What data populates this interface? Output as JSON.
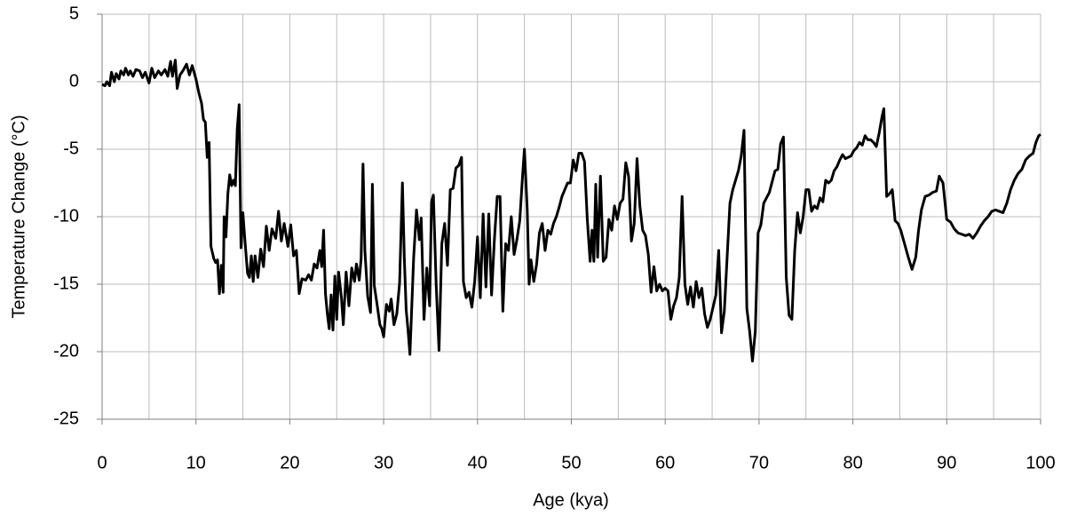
{
  "chart_data": {
    "type": "line",
    "xlabel": "Age (kya)",
    "ylabel": "Temperature Change (°C)",
    "xlim": [
      0,
      100
    ],
    "xticks": [
      0,
      10,
      20,
      30,
      40,
      50,
      60,
      70,
      80,
      90,
      100
    ],
    "x_minor_grid": [
      5,
      15,
      25,
      35,
      45,
      55,
      65,
      75,
      85,
      95
    ],
    "ylim": [
      -25,
      5
    ],
    "yticks": [
      5,
      0,
      -5,
      -10,
      -15,
      -20,
      -25
    ],
    "grid": true,
    "series": [
      {
        "color": "#000000",
        "x": [
          0,
          0.3,
          0.5,
          0.8,
          1,
          1.3,
          1.5,
          1.8,
          2,
          2.3,
          2.5,
          2.8,
          3,
          3.3,
          3.6,
          4,
          4.3,
          4.6,
          5,
          5.3,
          5.6,
          6,
          6.3,
          6.7,
          7,
          7.3,
          7.5,
          7.8,
          8,
          8.3,
          8.6,
          9,
          9.3,
          9.6,
          10,
          10.3,
          10.6,
          10.8,
          11,
          11.2,
          11.4,
          11.6,
          11.9,
          12.1,
          12.3,
          12.5,
          12.7,
          12.9,
          13,
          13.2,
          13.4,
          13.6,
          13.8,
          14,
          14.2,
          14.4,
          14.6,
          14.8,
          15,
          15.2,
          15.5,
          15.7,
          15.9,
          16.1,
          16.3,
          16.6,
          16.9,
          17.2,
          17.5,
          17.8,
          18.1,
          18.5,
          18.8,
          19.1,
          19.4,
          19.8,
          20.1,
          20.4,
          20.7,
          21,
          21.3,
          21.7,
          22,
          22.3,
          22.6,
          22.9,
          23.2,
          23.4,
          23.6,
          23.8,
          24,
          24.2,
          24.4,
          24.6,
          24.8,
          25,
          25.2,
          25.5,
          25.7,
          26,
          26.3,
          26.6,
          26.9,
          27.1,
          27.4,
          27.6,
          27.8,
          28,
          28.3,
          28.6,
          28.8,
          29,
          29.3,
          29.6,
          29.8,
          30,
          30.3,
          30.6,
          30.8,
          31.1,
          31.4,
          31.7,
          32,
          32.2,
          32.4,
          32.6,
          32.8,
          33.2,
          33.5,
          33.8,
          34,
          34.3,
          34.6,
          34.9,
          35.1,
          35.3,
          35.6,
          35.9,
          36.2,
          36.5,
          36.8,
          37.1,
          37.4,
          37.7,
          38,
          38.3,
          38.5,
          38.8,
          39.1,
          39.4,
          39.7,
          40,
          40.3,
          40.6,
          40.9,
          41.2,
          41.5,
          41.8,
          42.1,
          42.4,
          42.7,
          43,
          43.3,
          43.6,
          43.9,
          44.2,
          44.5,
          44.8,
          45,
          45.3,
          45.5,
          45.7,
          46,
          46.3,
          46.6,
          46.9,
          47.2,
          47.5,
          47.8,
          48.1,
          48.4,
          48.7,
          49,
          49.3,
          49.6,
          49.9,
          50.2,
          50.5,
          50.8,
          51.1,
          51.4,
          51.7,
          52,
          52.2,
          52.4,
          52.6,
          52.8,
          53.1,
          53.4,
          53.7,
          54,
          54.3,
          54.6,
          54.9,
          55.2,
          55.5,
          55.8,
          56.1,
          56.4,
          56.7,
          57,
          57.3,
          57.6,
          57.9,
          58.2,
          58.5,
          58.8,
          59.1,
          59.4,
          59.7,
          60,
          60.3,
          60.6,
          60.9,
          61.2,
          61.5,
          61.8,
          62.1,
          62.4,
          62.7,
          63,
          63.3,
          63.6,
          63.9,
          64.2,
          64.5,
          64.8,
          65.1,
          65.4,
          65.7,
          66,
          66.3,
          66.6,
          66.9,
          67.2,
          67.5,
          67.8,
          68.1,
          68.4,
          68.7,
          69,
          69.3,
          69.6,
          69.9,
          70.2,
          70.5,
          70.8,
          71.1,
          71.4,
          71.7,
          72,
          72.3,
          72.6,
          72.9,
          73.2,
          73.5,
          73.8,
          74.1,
          74.4,
          74.7,
          75,
          75.3,
          75.6,
          75.9,
          76.2,
          76.5,
          76.8,
          77.1,
          77.4,
          77.7,
          78,
          78.3,
          78.6,
          78.9,
          79.2,
          79.5,
          79.8,
          80.1,
          80.4,
          80.7,
          81,
          81.3,
          81.6,
          81.9,
          82.2,
          82.5,
          82.8,
          83.1,
          83.3,
          83.6,
          83.9,
          84.2,
          84.5,
          84.8,
          85.1,
          85.5,
          85.9,
          86.3,
          86.7,
          87,
          87.3,
          87.7,
          88.1,
          88.5,
          88.9,
          89.2,
          89.6,
          90,
          90.4,
          90.8,
          91.2,
          91.6,
          92,
          92.4,
          92.8,
          93.2,
          93.6,
          94,
          94.4,
          94.8,
          95.2,
          95.6,
          96,
          96.4,
          96.8,
          97.2,
          97.6,
          98,
          98.4,
          98.8,
          99.2,
          99.5,
          99.8,
          100
        ],
        "values": [
          -0.2,
          -0.3,
          0,
          -0.3,
          0.7,
          0,
          0.6,
          0.2,
          0.8,
          0.5,
          1.0,
          0.5,
          0.8,
          0.4,
          0.9,
          0.8,
          0.3,
          0.7,
          -0.1,
          1.0,
          0.3,
          0.8,
          0.5,
          0.9,
          0.4,
          1.5,
          0.4,
          1.6,
          -0.5,
          0.5,
          0.8,
          1.3,
          0.5,
          1.2,
          0.2,
          -0.8,
          -1.6,
          -2.8,
          -3,
          -5.6,
          -4.5,
          -12.2,
          -13.1,
          -13.4,
          -13.2,
          -15.7,
          -13.6,
          -15.6,
          -10,
          -11.5,
          -8.3,
          -6.9,
          -7.7,
          -7.3,
          -7.7,
          -3.5,
          -1.7,
          -12.3,
          -9.7,
          -11.6,
          -14.2,
          -14.5,
          -12.9,
          -14.8,
          -12.9,
          -14.5,
          -12.4,
          -13.7,
          -10.7,
          -12.5,
          -10.9,
          -11.6,
          -9.6,
          -11.8,
          -10.5,
          -12.2,
          -10.6,
          -12.9,
          -12.5,
          -15.7,
          -14.6,
          -14.7,
          -14.3,
          -14.7,
          -13.5,
          -13.8,
          -12.5,
          -13.7,
          -11,
          -15.7,
          -17.2,
          -18.3,
          -15.8,
          -18.4,
          -14.4,
          -17.6,
          -14.1,
          -16,
          -18,
          -14.1,
          -16.6,
          -13.8,
          -14.8,
          -13.5,
          -14.7,
          -13.1,
          -6.1,
          -12.5,
          -15.9,
          -17.1,
          -7.6,
          -15.1,
          -16.5,
          -18,
          -18.3,
          -18.9,
          -16.5,
          -17,
          -16.1,
          -18,
          -17.2,
          -14.9,
          -7.5,
          -13,
          -16.9,
          -18.4,
          -20.2,
          -13,
          -9.5,
          -11.7,
          -10.1,
          -17.6,
          -13.8,
          -16.6,
          -8.9,
          -8.4,
          -15.1,
          -19.9,
          -12,
          -10.5,
          -13.6,
          -8,
          -7.9,
          -6.4,
          -6.2,
          -5.6,
          -14.8,
          -16,
          -15.6,
          -16.7,
          -14.8,
          -11.5,
          -16,
          -9.8,
          -15.2,
          -9.8,
          -15.8,
          -11.7,
          -8.5,
          -8.5,
          -17,
          -12,
          -12.5,
          -10,
          -12.8,
          -11.7,
          -10.3,
          -7,
          -5,
          -9.5,
          -15,
          -13.2,
          -14.8,
          -13.5,
          -11.2,
          -10.5,
          -12.5,
          -11,
          -11.3,
          -10.5,
          -10,
          -9.3,
          -8.5,
          -8,
          -7.5,
          -7.5,
          -5.8,
          -6.6,
          -5.3,
          -5.3,
          -5.9,
          -10.2,
          -13.3,
          -11,
          -13.3,
          -7.6,
          -13,
          -7,
          -13.3,
          -13,
          -10.2,
          -11,
          -9.2,
          -10.2,
          -9,
          -8.7,
          -6,
          -7,
          -11.8,
          -10.5,
          -5.7,
          -9.2,
          -11,
          -11.4,
          -12.8,
          -15.6,
          -13.7,
          -15.5,
          -15,
          -15.5,
          -15.3,
          -15.5,
          -17.6,
          -16.6,
          -16,
          -14.5,
          -8.5,
          -15,
          -16.5,
          -15.2,
          -16.7,
          -14.8,
          -16,
          -15.3,
          -17.2,
          -18.2,
          -17.6,
          -16.7,
          -15.8,
          -12.5,
          -18.6,
          -17,
          -13,
          -9,
          -8,
          -7.3,
          -6.6,
          -5.5,
          -3.6,
          -16.8,
          -18.5,
          -20.7,
          -18.5,
          -11.2,
          -10.6,
          -9,
          -8.6,
          -8.2,
          -7.4,
          -6.6,
          -6.5,
          -4.6,
          -4.1,
          -14.5,
          -17.3,
          -17.6,
          -12.5,
          -9.7,
          -11.2,
          -10,
          -8,
          -8,
          -9.6,
          -9.2,
          -9.4,
          -8.6,
          -8.9,
          -7.3,
          -7.5,
          -7.3,
          -6.6,
          -6.3,
          -5.8,
          -5.4,
          -5.7,
          -5.6,
          -5.5,
          -5.1,
          -4.9,
          -4.5,
          -4.7,
          -4,
          -4.3,
          -4.3,
          -4.5,
          -4.8,
          -3.8,
          -2.6,
          -2,
          -8.5,
          -8.3,
          -8,
          -10.3,
          -10.5,
          -11,
          -12,
          -13,
          -13.9,
          -13,
          -11,
          -9.5,
          -8.5,
          -8.4,
          -8.2,
          -8.1,
          -7,
          -7.5,
          -10.2,
          -10.4,
          -10.9,
          -11.2,
          -11.3,
          -11.4,
          -11.3,
          -11.6,
          -11.2,
          -10.7,
          -10.3,
          -10,
          -9.6,
          -9.5,
          -9.6,
          -9.7,
          -9,
          -8,
          -7.3,
          -6.8,
          -6.5,
          -5.8,
          -5.5,
          -5.3,
          -4.5,
          -4,
          -3.9
        ]
      }
    ]
  }
}
